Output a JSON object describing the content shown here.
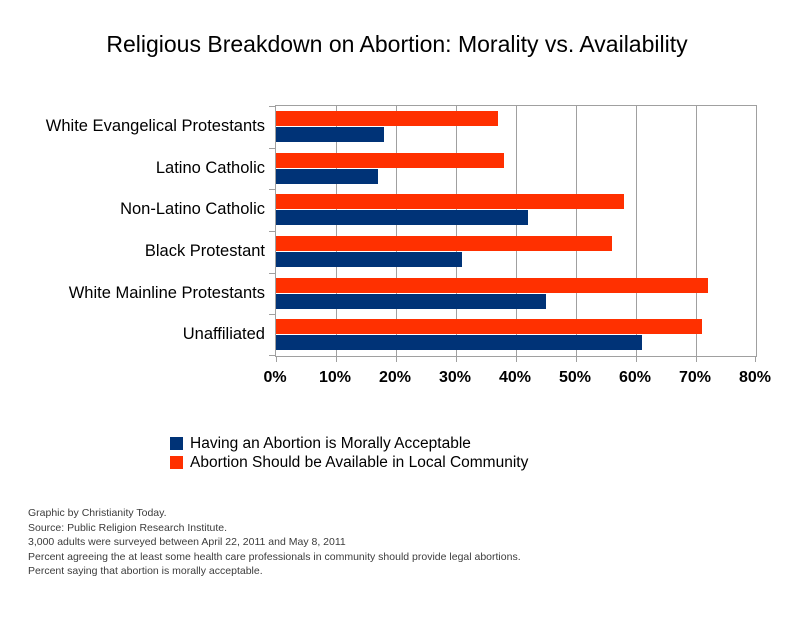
{
  "chart_data": {
    "type": "bar",
    "orientation": "horizontal",
    "title": "Religious Breakdown on Abortion: Morality vs. Availability",
    "categories": [
      "White Evangelical Protestants",
      "Latino Catholic",
      "Non-Latino Catholic",
      "Black Protestant",
      "White Mainline Protestants",
      "Unaffiliated"
    ],
    "series": [
      {
        "name": "Having an Abortion is Morally Acceptable",
        "color": "#003377",
        "values": [
          18,
          17,
          42,
          31,
          45,
          61
        ]
      },
      {
        "name": "Abortion Should be Available in Local Community",
        "color": "#ff3000",
        "values": [
          37,
          38,
          58,
          56,
          72,
          71
        ]
      }
    ],
    "bar_order_top_to_bottom": [
      "Abortion Should be Available in Local Community",
      "Having an Abortion is Morally Acceptable"
    ],
    "xlabel": "",
    "ylabel": "",
    "xlim": [
      0,
      80
    ],
    "x_tick_labels": [
      "0%",
      "10%",
      "20%",
      "30%",
      "40%",
      "50%",
      "60%",
      "70%",
      "80%"
    ],
    "grid": true,
    "legend_position": "below-chart"
  },
  "footnotes": {
    "lines": [
      "Graphic by Christianity Today.",
      "Source: Public Religion Research Institute.",
      "3,000 adults were surveyed between April 22, 2011 and May 8, 2011",
      "Percent agreeing the at least some health care professionals in community should provide legal abortions.",
      "Percent saying that abortion is morally acceptable."
    ]
  },
  "colors": {
    "morally_acceptable_bar": "#003377",
    "availability_bar": "#ff3000",
    "gridline": "#a0a0a0",
    "footnote_text": "#3c3c3c",
    "background": "#ffffff"
  }
}
